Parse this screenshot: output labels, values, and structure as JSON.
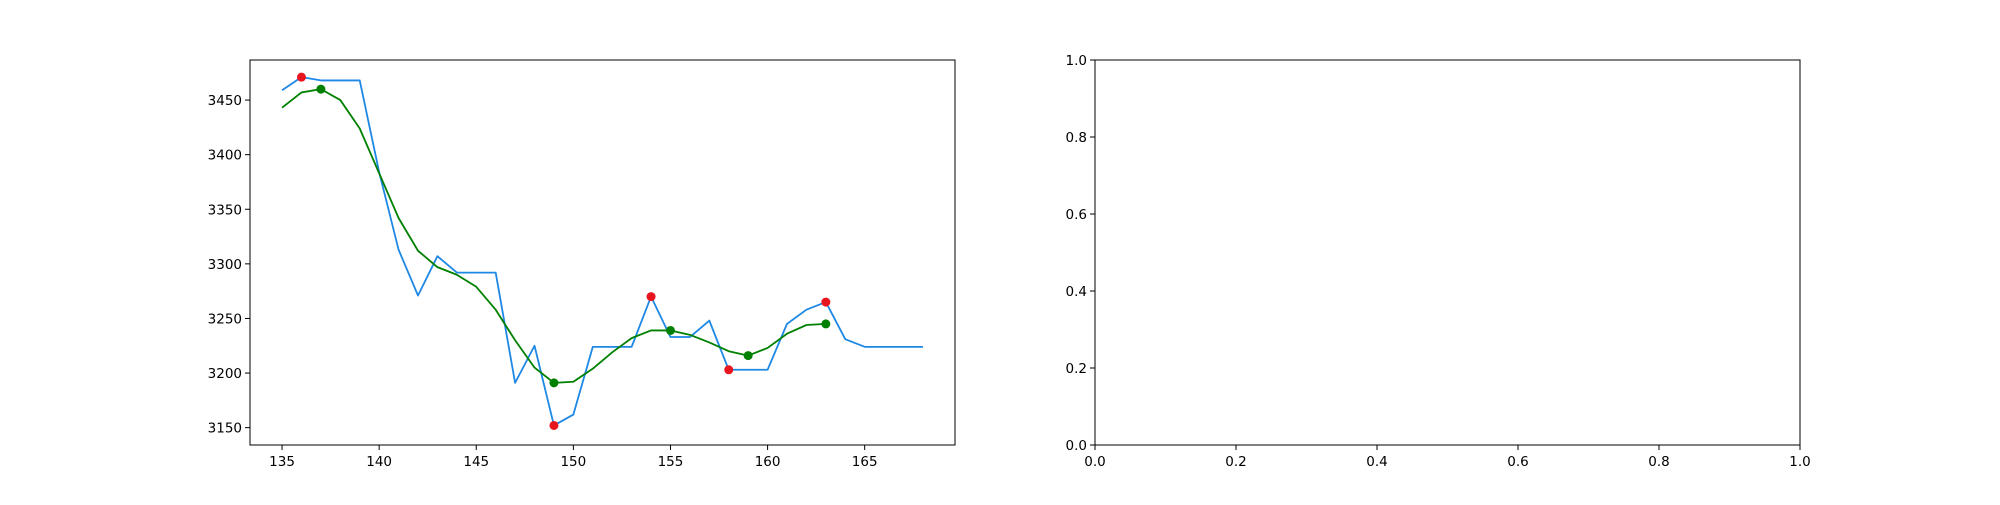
{
  "chart_data": [
    {
      "type": "line",
      "xlim": [
        133.35,
        169.65
      ],
      "ylim": [
        3134.1,
        3486.7
      ],
      "xticks": [
        135,
        140,
        145,
        150,
        155,
        160,
        165
      ],
      "yticks": [
        3150,
        3200,
        3250,
        3300,
        3350,
        3400,
        3450
      ],
      "grid": false,
      "series": [
        {
          "color": "#1e88e5",
          "x": [
            135,
            136,
            137,
            138,
            139,
            140,
            141,
            142,
            143,
            144,
            145,
            146,
            147,
            148,
            149,
            150,
            151,
            152,
            153,
            154,
            155,
            156,
            157,
            158,
            159,
            160,
            161,
            162,
            163,
            164,
            165,
            166,
            167,
            168
          ],
          "y": [
            3459,
            3471,
            3468,
            3468,
            3468,
            3384,
            3313,
            3271,
            3307,
            3292,
            3292,
            3292,
            3191,
            3225,
            3152,
            3162,
            3224,
            3224,
            3224,
            3270,
            3233,
            3233,
            3248,
            3203,
            3203,
            3203,
            3245,
            3258,
            3265,
            3231,
            3224,
            3224,
            3224,
            3224
          ]
        },
        {
          "color": "#008000",
          "x": [
            135,
            136,
            137,
            138,
            139,
            140,
            141,
            142,
            143,
            144,
            145,
            146,
            147,
            148,
            149,
            150,
            151,
            152,
            153,
            154,
            155,
            156,
            157,
            158,
            159,
            160,
            161,
            162,
            163
          ],
          "y": [
            3443,
            3457,
            3460,
            3450,
            3424,
            3383,
            3342,
            3312,
            3297,
            3290,
            3279,
            3258,
            3230,
            3205,
            3191,
            3192,
            3204,
            3219,
            3232,
            3239,
            3239,
            3235,
            3228,
            3220,
            3216,
            3223,
            3236,
            3244,
            3245
          ]
        }
      ],
      "markers": [
        {
          "color": "#e8141e",
          "points": [
            [
              136,
              3471
            ],
            [
              149,
              3152
            ],
            [
              154,
              3270
            ],
            [
              158,
              3203
            ],
            [
              163,
              3265
            ]
          ]
        },
        {
          "color": "#008000",
          "points": [
            [
              137,
              3460
            ],
            [
              149,
              3191
            ],
            [
              155,
              3239
            ],
            [
              159,
              3216
            ],
            [
              163,
              3245
            ]
          ]
        }
      ]
    },
    {
      "type": "line",
      "xlim": [
        0,
        1
      ],
      "ylim": [
        0,
        1
      ],
      "xticks": [
        "0.0",
        "0.2",
        "0.4",
        "0.6",
        "0.8",
        "1.0"
      ],
      "yticks": [
        "0.0",
        "0.2",
        "0.4",
        "0.6",
        "0.8",
        "1.0"
      ],
      "grid": false,
      "series": []
    }
  ]
}
